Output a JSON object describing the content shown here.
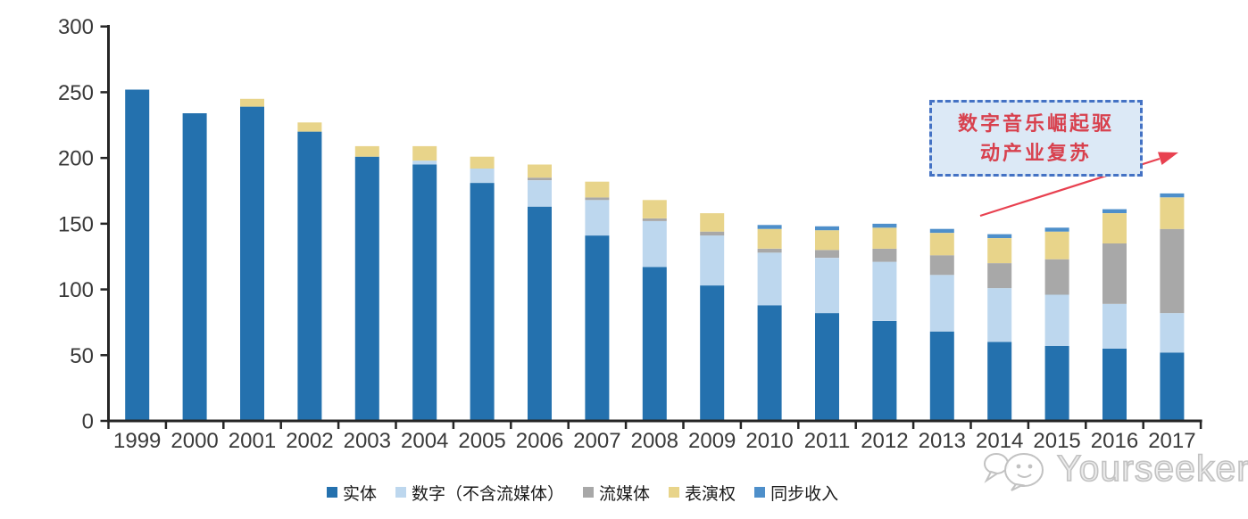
{
  "chart_data": {
    "type": "bar",
    "stacked": true,
    "title": "",
    "xlabel": "",
    "ylabel": "",
    "categories": [
      "1999",
      "2000",
      "2001",
      "2002",
      "2003",
      "2004",
      "2005",
      "2006",
      "2007",
      "2008",
      "2009",
      "2010",
      "2011",
      "2012",
      "2013",
      "2014",
      "2015",
      "2016",
      "2017"
    ],
    "series": [
      {
        "name": "实体",
        "color": "#2471AE",
        "values": [
          252,
          234,
          239,
          220,
          201,
          195,
          181,
          163,
          141,
          117,
          103,
          88,
          82,
          76,
          68,
          60,
          57,
          55,
          52
        ]
      },
      {
        "name": "数字（不含流媒体）",
        "color": "#BDD7EE",
        "values": [
          0,
          0,
          0,
          0,
          0,
          3,
          11,
          20,
          27,
          35,
          38,
          40,
          42,
          45,
          43,
          41,
          39,
          34,
          30
        ]
      },
      {
        "name": "流媒体",
        "color": "#A8A8A8",
        "values": [
          0,
          0,
          0,
          0,
          0,
          0,
          0,
          2,
          2,
          2,
          3,
          3,
          6,
          10,
          15,
          19,
          27,
          46,
          64
        ]
      },
      {
        "name": "表演权",
        "color": "#E8D48A",
        "values": [
          0,
          0,
          6,
          7,
          8,
          11,
          9,
          10,
          12,
          14,
          14,
          15,
          15,
          16,
          17,
          19,
          21,
          23,
          24
        ]
      },
      {
        "name": "同步收入",
        "color": "#4E8FCA",
        "values": [
          0,
          0,
          0,
          0,
          0,
          0,
          0,
          0,
          0,
          0,
          0,
          3,
          3,
          3,
          3,
          3,
          3,
          3,
          3
        ]
      }
    ],
    "ylim": [
      0,
      300
    ],
    "yticks": [
      0,
      50,
      100,
      150,
      200,
      250,
      300
    ],
    "grid": false,
    "legend_position": "bottom"
  },
  "axis": {
    "color": "#262626",
    "label_color": "#3a3a3a"
  },
  "annotation": {
    "line1": "数字音乐崛起驱",
    "line2": "动产业复苏",
    "box_border_color": "#4472C4",
    "box_fill_color": "#DCE9F6",
    "text_color": "#D8414E",
    "arrow_color": "#E84150"
  },
  "watermark": {
    "text": "Yourseeker",
    "color": "#C2C2C2",
    "logo": "chat-bubbles-icon"
  }
}
